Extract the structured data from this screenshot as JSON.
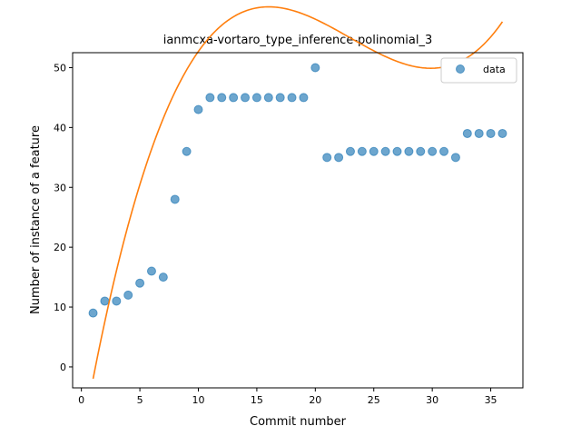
{
  "chart_data": {
    "type": "scatter",
    "title": "ianmcxa-vortaro_type_inference-polinomial_3",
    "xlabel": "Commit number",
    "ylabel": "Number of instance of a feature",
    "xlim": [
      -0.75,
      37.75
    ],
    "ylim": [
      -3.5,
      52.5
    ],
    "xticks": [
      0,
      5,
      10,
      15,
      20,
      25,
      30,
      35
    ],
    "yticks": [
      0,
      10,
      20,
      30,
      40,
      50
    ],
    "legend_position": "top-right",
    "grid": false,
    "series": [
      {
        "name": "data",
        "kind": "scatter",
        "color": "#1f77b4",
        "x": [
          1,
          2,
          3,
          4,
          5,
          6,
          7,
          8,
          9,
          10,
          11,
          12,
          13,
          14,
          15,
          16,
          17,
          18,
          19,
          20,
          21,
          22,
          23,
          24,
          25,
          26,
          27,
          28,
          29,
          30,
          31,
          32,
          33,
          34,
          35,
          36
        ],
        "y": [
          9,
          11,
          11,
          12,
          14,
          16,
          15,
          28,
          36,
          43,
          45,
          45,
          45,
          45,
          45,
          45,
          45,
          45,
          45,
          50,
          35,
          35,
          36,
          36,
          36,
          36,
          36,
          36,
          36,
          36,
          36,
          35,
          39,
          39,
          39,
          39
        ]
      },
      {
        "kind": "fit-line",
        "color": "#ff7f0e",
        "poly_coeffs": [
          -12.5,
          11.05,
          -0.53,
          0.0077
        ]
      }
    ]
  }
}
